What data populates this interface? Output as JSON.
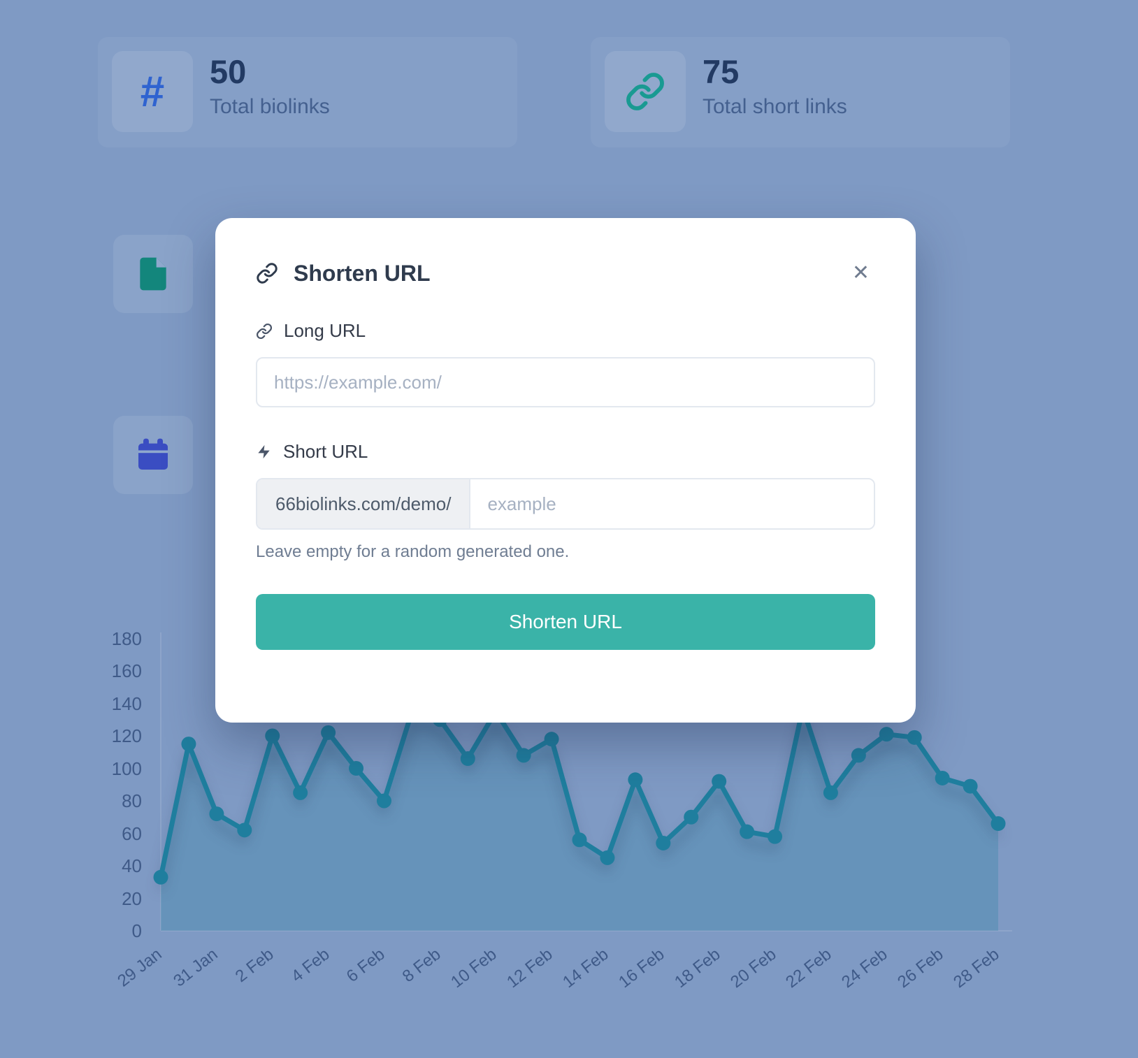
{
  "page": {
    "background_color": "#7f9ac4"
  },
  "stats": [
    {
      "icon": "hash-icon",
      "icon_glyph": "#",
      "icon_color": "#2f63d0",
      "value": "50",
      "label": "Total biolinks"
    },
    {
      "icon": "link-icon",
      "icon_color": "#199a92",
      "value": "75",
      "label": "Total short links"
    }
  ],
  "side_cards": [
    {
      "icon": "file-icon",
      "icon_color": "#13867c"
    },
    {
      "icon": "calendar-icon",
      "icon_color": "#3a4dc2"
    }
  ],
  "modal": {
    "title": "Shorten URL",
    "close_glyph": "✕",
    "long_url_label": "Long URL",
    "long_url_placeholder": "https://example.com/",
    "short_url_label": "Short URL",
    "short_url_prefix": "66biolinks.com/demo/",
    "short_url_placeholder": "example",
    "helper_text": "Leave empty for a random generated one.",
    "submit_label": "Shorten URL",
    "accent_color": "#3ab3a8"
  },
  "chart_data": {
    "type": "line",
    "x": [
      "29 Jan",
      "30 Jan",
      "31 Jan",
      "1 Feb",
      "2 Feb",
      "3 Feb",
      "4 Feb",
      "5 Feb",
      "6 Feb",
      "7 Feb",
      "8 Feb",
      "9 Feb",
      "10 Feb",
      "11 Feb",
      "12 Feb",
      "13 Feb",
      "14 Feb",
      "15 Feb",
      "16 Feb",
      "17 Feb",
      "18 Feb",
      "19 Feb",
      "20 Feb",
      "21 Feb",
      "22 Feb",
      "23 Feb",
      "24 Feb",
      "25 Feb",
      "26 Feb",
      "27 Feb",
      "28 Feb"
    ],
    "values": [
      33,
      115,
      72,
      62,
      120,
      85,
      122,
      100,
      80,
      135,
      130,
      106,
      135,
      108,
      118,
      56,
      45,
      93,
      54,
      70,
      92,
      61,
      58,
      137,
      85,
      108,
      121,
      119,
      94,
      89,
      66
    ],
    "visible_x_ticks": [
      "29 Jan",
      "31 Jan",
      "2 Feb",
      "4 Feb",
      "6 Feb",
      "8 Feb",
      "10 Feb",
      "12 Feb",
      "14 Feb",
      "16 Feb",
      "18 Feb",
      "20 Feb",
      "22 Feb",
      "24 Feb",
      "26 Feb",
      "28 Feb"
    ],
    "y_ticks": [
      0,
      20,
      40,
      60,
      80,
      100,
      120,
      140,
      160,
      180
    ],
    "ylim": [
      0,
      180
    ],
    "xlabel": "",
    "ylabel": "",
    "grid": false,
    "legend": false,
    "line_color": "#1f7e9e",
    "fill_color": "rgba(31,126,158,0.26)"
  }
}
